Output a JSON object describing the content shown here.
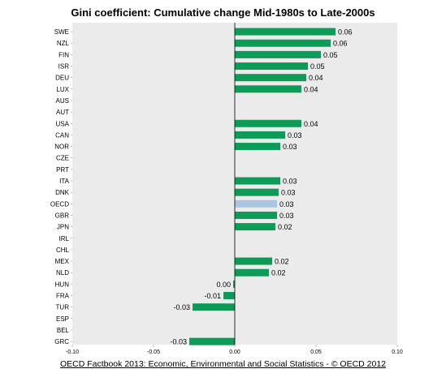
{
  "chart_data": {
    "type": "bar",
    "orientation": "horizontal",
    "title": "Gini coefficient: Cumulative change Mid-1980s to Late-2000s",
    "categories": [
      "SWE",
      "NZL",
      "FIN",
      "ISR",
      "DEU",
      "LUX",
      "AUS",
      "AUT",
      "USA",
      "CAN",
      "NOR",
      "CZE",
      "PRT",
      "ITA",
      "DNK",
      "OECD",
      "GBR",
      "JPN",
      "IRL",
      "CHL",
      "MEX",
      "NLD",
      "HUN",
      "FRA",
      "TUR",
      "ESP",
      "BEL",
      "GRC"
    ],
    "values": [
      0.062,
      0.059,
      0.053,
      0.045,
      0.044,
      0.041,
      null,
      null,
      0.041,
      0.031,
      0.028,
      null,
      null,
      0.028,
      0.027,
      0.026,
      0.026,
      0.025,
      null,
      null,
      0.023,
      0.021,
      -0.001,
      -0.007,
      -0.026,
      null,
      null,
      -0.028
    ],
    "value_labels": [
      "0.06",
      "0.06",
      "0.05",
      "0.05",
      "0.04",
      "0.04",
      "",
      "",
      "0.04",
      "0.03",
      "0.03",
      "",
      "",
      "0.03",
      "0.03",
      "0.03",
      "0.03",
      "0.02",
      "",
      "",
      "0.02",
      "0.02",
      "0.00",
      "-0.01",
      "-0.03",
      "",
      "",
      "-0.03"
    ],
    "highlight": "OECD",
    "xlim": [
      -0.1,
      0.1
    ],
    "xticks": [
      "-0.10",
      "-0.05",
      "0.00",
      "0.05",
      "0.10"
    ],
    "xtick_values": [
      -0.1,
      -0.05,
      0,
      0.05,
      0.1
    ],
    "colors": {
      "bar": "#0e9b57",
      "highlight": "#a8c6e4",
      "plot_bg": "#ebebeb"
    }
  },
  "footer": {
    "source": "OECD Factbook 2013: Economic, Environmental and Social Statistics - © OECD 2012"
  }
}
